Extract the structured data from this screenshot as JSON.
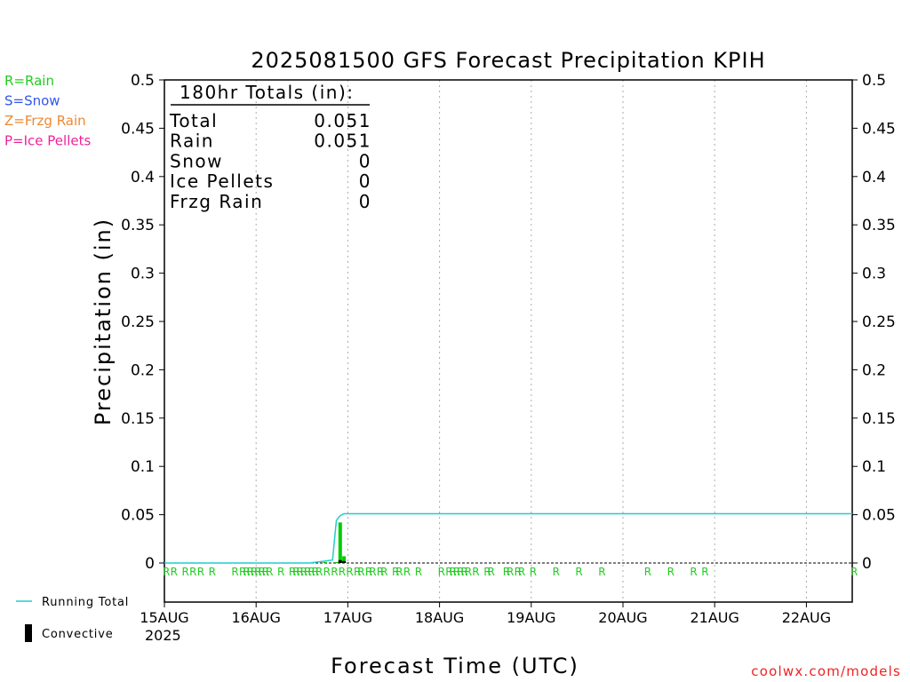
{
  "chart_data": {
    "type": "bar",
    "title": "2025081500 GFS Forecast Precipitation KPIH",
    "xlabel": "Forecast Time (UTC)",
    "ylabel": "Precipitation (in)",
    "ylim": [
      0,
      0.5
    ],
    "yticks": [
      "0",
      "0.05",
      "0.1",
      "0.15",
      "0.2",
      "0.25",
      "0.3",
      "0.35",
      "0.4",
      "0.45",
      "0.5"
    ],
    "xticks": [
      "15AUG",
      "16AUG",
      "17AUG",
      "18AUG",
      "19AUG",
      "20AUG",
      "21AUG",
      "22AUG"
    ],
    "x_year": "2025",
    "x_unit": "forecast hour",
    "xlim": [
      0,
      180
    ],
    "grid": "vertical dotted",
    "legend_left": [
      {
        "label": "R=Rain",
        "color": "#22cc22"
      },
      {
        "label": "S=Snow",
        "color": "#3355ee"
      },
      {
        "label": "Z=Frzg Rain",
        "color": "#ee8833"
      },
      {
        "label": "P=Ice Pellets",
        "color": "#ee2299"
      }
    ],
    "legend_bottom": [
      {
        "label": "Running Total",
        "color": "#22cccc"
      },
      {
        "label": "Convective",
        "color": "#000000"
      }
    ],
    "totals_box": {
      "heading": "180hr Totals (in):",
      "rows": [
        {
          "label": "Total",
          "value": "0.051"
        },
        {
          "label": "Rain",
          "value": "0.051"
        },
        {
          "label": "Snow",
          "value": "0"
        },
        {
          "label": "Ice Pellets",
          "value": "0"
        },
        {
          "label": "Frzg Rain",
          "value": "0"
        }
      ]
    },
    "series": [
      {
        "name": "Rain",
        "color": "#00cc00",
        "points": [
          [
            39,
            0.001
          ],
          [
            42,
            0.001
          ],
          [
            45,
            0.001
          ],
          [
            46,
            0.042
          ],
          [
            47,
            0.007
          ]
        ]
      },
      {
        "name": "Convective",
        "color": "#000000",
        "points": [
          [
            46,
            0.003
          ],
          [
            47,
            0.002
          ]
        ]
      },
      {
        "name": "Running Total",
        "color": "#22cccc",
        "points": [
          [
            0,
            0
          ],
          [
            38,
            0
          ],
          [
            44,
            0.003
          ],
          [
            45,
            0.044
          ],
          [
            46,
            0.049
          ],
          [
            47,
            0.051
          ],
          [
            180,
            0.051
          ]
        ]
      }
    ],
    "type_markers": {
      "symbol": "R",
      "color": "#22cc22",
      "hours": [
        0,
        2,
        5,
        7,
        9,
        12,
        18,
        20,
        21,
        22,
        23,
        24,
        25,
        26,
        27,
        30,
        33,
        34,
        35,
        36,
        37,
        38,
        39,
        40,
        42,
        44,
        46,
        48,
        50,
        51,
        53,
        54,
        56,
        57,
        60,
        61,
        63,
        66,
        72,
        74,
        75,
        76,
        77,
        78,
        79,
        81,
        84,
        85,
        89,
        90,
        92,
        93,
        96,
        102,
        108,
        114,
        126,
        132,
        138,
        141,
        180
      ]
    }
  },
  "footer": {
    "credit": "coolwx.com/models"
  }
}
